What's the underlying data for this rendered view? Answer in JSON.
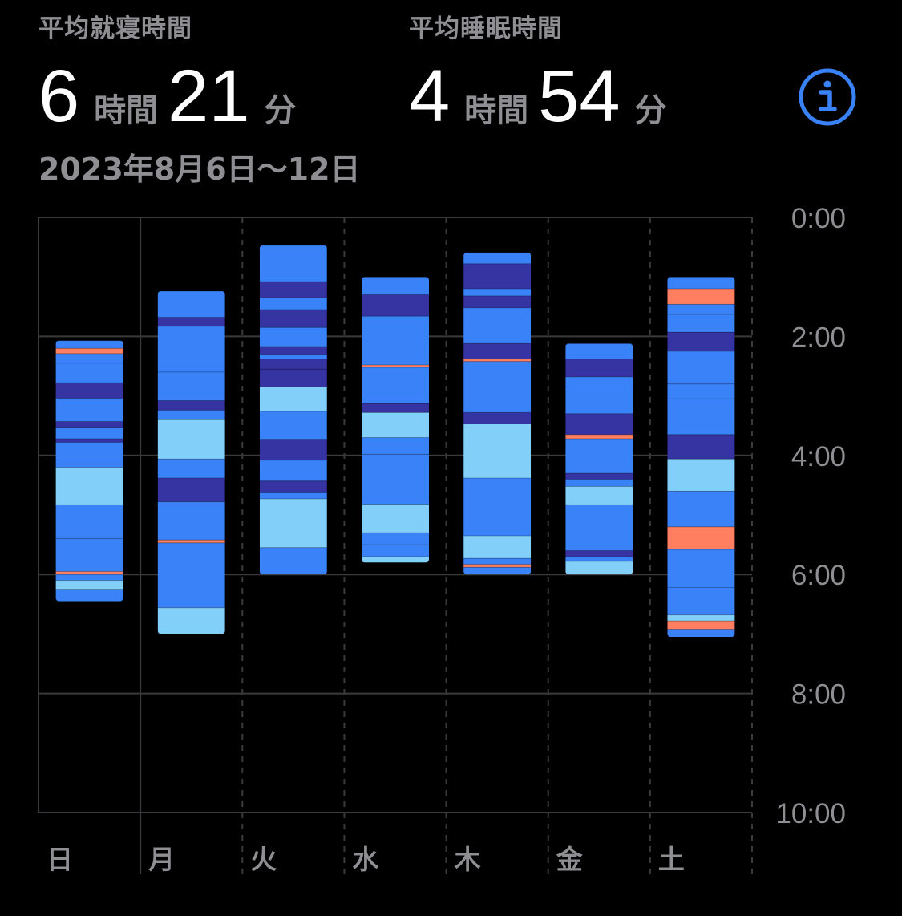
{
  "header": {
    "bedtime_label": "平均就寝時間",
    "bedtime_hours": "6",
    "bedtime_hours_unit": "時間",
    "bedtime_minutes": "21",
    "bedtime_minutes_unit": "分",
    "sleep_label": "平均睡眠時間",
    "sleep_hours": "4",
    "sleep_hours_unit": "時間",
    "sleep_minutes": "54",
    "sleep_minutes_unit": "分",
    "date_range": "2023年8月6日〜12日",
    "info_icon": "info-icon"
  },
  "colors": {
    "deep": "#3634a3",
    "core": "#3a82f7",
    "rem": "#82cffa",
    "awake": "#ff7f60",
    "grid": "#3a3a3c",
    "axis_text": "#8e8e93",
    "info": "#3a82f7"
  },
  "chart_data": {
    "type": "bar",
    "orientation": "vertical-floating",
    "ylim": [
      0,
      10
    ],
    "y_ticks": [
      "0:00",
      "2:00",
      "4:00",
      "6:00",
      "8:00",
      "10:00"
    ],
    "categories": [
      "日",
      "月",
      "火",
      "水",
      "木",
      "金",
      "土"
    ],
    "days": [
      {
        "day": "日",
        "start": 2.07,
        "end": 6.45,
        "segments": [
          {
            "stage": "core",
            "start": 2.07,
            "end": 2.2
          },
          {
            "stage": "awake",
            "start": 2.2,
            "end": 2.29
          },
          {
            "stage": "core",
            "start": 2.29,
            "end": 2.45
          },
          {
            "stage": "core",
            "start": 2.45,
            "end": 2.78
          },
          {
            "stage": "deep",
            "start": 2.78,
            "end": 3.04
          },
          {
            "stage": "core",
            "start": 3.04,
            "end": 3.43
          },
          {
            "stage": "deep",
            "start": 3.43,
            "end": 3.53
          },
          {
            "stage": "core",
            "start": 3.53,
            "end": 3.72
          },
          {
            "stage": "deep",
            "start": 3.72,
            "end": 3.78
          },
          {
            "stage": "core",
            "start": 3.78,
            "end": 4.2
          },
          {
            "stage": "rem",
            "start": 4.2,
            "end": 4.83
          },
          {
            "stage": "core",
            "start": 4.83,
            "end": 5.4
          },
          {
            "stage": "core",
            "start": 5.4,
            "end": 5.95
          },
          {
            "stage": "awake",
            "start": 5.95,
            "end": 6.0
          },
          {
            "stage": "core",
            "start": 6.0,
            "end": 6.1
          },
          {
            "stage": "rem",
            "start": 6.1,
            "end": 6.25
          },
          {
            "stage": "core",
            "start": 6.25,
            "end": 6.45
          }
        ]
      },
      {
        "day": "月",
        "start": 1.24,
        "end": 7.0,
        "segments": [
          {
            "stage": "core",
            "start": 1.24,
            "end": 1.68
          },
          {
            "stage": "deep",
            "start": 1.68,
            "end": 1.83
          },
          {
            "stage": "core",
            "start": 1.83,
            "end": 2.6
          },
          {
            "stage": "core",
            "start": 2.6,
            "end": 3.08
          },
          {
            "stage": "deep",
            "start": 3.08,
            "end": 3.24
          },
          {
            "stage": "core",
            "start": 3.24,
            "end": 3.4
          },
          {
            "stage": "rem",
            "start": 3.4,
            "end": 4.06
          },
          {
            "stage": "core",
            "start": 4.06,
            "end": 4.38
          },
          {
            "stage": "deep",
            "start": 4.38,
            "end": 4.78
          },
          {
            "stage": "core",
            "start": 4.78,
            "end": 5.42
          },
          {
            "stage": "awake",
            "start": 5.42,
            "end": 5.47
          },
          {
            "stage": "core",
            "start": 5.47,
            "end": 6.56
          },
          {
            "stage": "rem",
            "start": 6.56,
            "end": 7.0
          }
        ]
      },
      {
        "day": "火",
        "start": 0.47,
        "end": 6.0,
        "segments": [
          {
            "stage": "core",
            "start": 0.47,
            "end": 1.08
          },
          {
            "stage": "deep",
            "start": 1.08,
            "end": 1.35
          },
          {
            "stage": "core",
            "start": 1.35,
            "end": 1.55
          },
          {
            "stage": "deep",
            "start": 1.55,
            "end": 1.85
          },
          {
            "stage": "core",
            "start": 1.85,
            "end": 2.17
          },
          {
            "stage": "deep",
            "start": 2.17,
            "end": 2.3
          },
          {
            "stage": "core",
            "start": 2.3,
            "end": 2.38
          },
          {
            "stage": "deep",
            "start": 2.38,
            "end": 2.55
          },
          {
            "stage": "deep",
            "start": 2.55,
            "end": 2.85
          },
          {
            "stage": "rem",
            "start": 2.85,
            "end": 3.26
          },
          {
            "stage": "core",
            "start": 3.26,
            "end": 3.73
          },
          {
            "stage": "deep",
            "start": 3.73,
            "end": 4.08
          },
          {
            "stage": "core",
            "start": 4.08,
            "end": 4.43
          },
          {
            "stage": "deep",
            "start": 4.43,
            "end": 4.63
          },
          {
            "stage": "core",
            "start": 4.63,
            "end": 4.73
          },
          {
            "stage": "rem",
            "start": 4.73,
            "end": 5.55
          },
          {
            "stage": "core",
            "start": 5.55,
            "end": 6.0
          }
        ]
      },
      {
        "day": "水",
        "start": 1.0,
        "end": 5.8,
        "segments": [
          {
            "stage": "core",
            "start": 1.0,
            "end": 1.3
          },
          {
            "stage": "deep",
            "start": 1.3,
            "end": 1.66
          },
          {
            "stage": "core",
            "start": 1.66,
            "end": 2.48
          },
          {
            "stage": "awake",
            "start": 2.48,
            "end": 2.52
          },
          {
            "stage": "core",
            "start": 2.52,
            "end": 3.13
          },
          {
            "stage": "deep",
            "start": 3.13,
            "end": 3.28
          },
          {
            "stage": "rem",
            "start": 3.28,
            "end": 3.7
          },
          {
            "stage": "core",
            "start": 3.7,
            "end": 3.98
          },
          {
            "stage": "core",
            "start": 3.98,
            "end": 4.82
          },
          {
            "stage": "rem",
            "start": 4.82,
            "end": 5.3
          },
          {
            "stage": "core",
            "start": 5.3,
            "end": 5.5
          },
          {
            "stage": "core",
            "start": 5.5,
            "end": 5.7
          },
          {
            "stage": "rem",
            "start": 5.7,
            "end": 5.8
          }
        ]
      },
      {
        "day": "木",
        "start": 0.59,
        "end": 6.0,
        "segments": [
          {
            "stage": "core",
            "start": 0.59,
            "end": 0.78
          },
          {
            "stage": "deep",
            "start": 0.78,
            "end": 1.2
          },
          {
            "stage": "core",
            "start": 1.2,
            "end": 1.32
          },
          {
            "stage": "deep",
            "start": 1.32,
            "end": 1.52
          },
          {
            "stage": "core",
            "start": 1.52,
            "end": 2.12
          },
          {
            "stage": "deep",
            "start": 2.12,
            "end": 2.38
          },
          {
            "stage": "awake",
            "start": 2.38,
            "end": 2.42
          },
          {
            "stage": "core",
            "start": 2.42,
            "end": 3.28
          },
          {
            "stage": "deep",
            "start": 3.28,
            "end": 3.47
          },
          {
            "stage": "rem",
            "start": 3.47,
            "end": 4.38
          },
          {
            "stage": "core",
            "start": 4.38,
            "end": 5.35
          },
          {
            "stage": "rem",
            "start": 5.35,
            "end": 5.73
          },
          {
            "stage": "core",
            "start": 5.73,
            "end": 5.83
          },
          {
            "stage": "awake",
            "start": 5.83,
            "end": 5.88
          },
          {
            "stage": "core",
            "start": 5.88,
            "end": 6.0
          }
        ]
      },
      {
        "day": "金",
        "start": 2.12,
        "end": 6.0,
        "segments": [
          {
            "stage": "core",
            "start": 2.12,
            "end": 2.38
          },
          {
            "stage": "deep",
            "start": 2.38,
            "end": 2.68
          },
          {
            "stage": "core",
            "start": 2.68,
            "end": 2.85
          },
          {
            "stage": "core",
            "start": 2.85,
            "end": 3.3
          },
          {
            "stage": "deep",
            "start": 3.3,
            "end": 3.65
          },
          {
            "stage": "awake",
            "start": 3.65,
            "end": 3.72
          },
          {
            "stage": "core",
            "start": 3.72,
            "end": 4.3
          },
          {
            "stage": "deep",
            "start": 4.3,
            "end": 4.4
          },
          {
            "stage": "core",
            "start": 4.4,
            "end": 4.52
          },
          {
            "stage": "rem",
            "start": 4.52,
            "end": 4.83
          },
          {
            "stage": "core",
            "start": 4.83,
            "end": 5.6
          },
          {
            "stage": "deep",
            "start": 5.6,
            "end": 5.7
          },
          {
            "stage": "core",
            "start": 5.7,
            "end": 5.78
          },
          {
            "stage": "rem",
            "start": 5.78,
            "end": 6.0
          }
        ]
      },
      {
        "day": "土",
        "start": 1.0,
        "end": 7.05,
        "segments": [
          {
            "stage": "core",
            "start": 1.0,
            "end": 1.2
          },
          {
            "stage": "awake",
            "start": 1.2,
            "end": 1.46
          },
          {
            "stage": "core",
            "start": 1.46,
            "end": 1.63
          },
          {
            "stage": "core",
            "start": 1.63,
            "end": 1.93
          },
          {
            "stage": "deep",
            "start": 1.93,
            "end": 2.25
          },
          {
            "stage": "core",
            "start": 2.25,
            "end": 2.8
          },
          {
            "stage": "core",
            "start": 2.8,
            "end": 3.05
          },
          {
            "stage": "core",
            "start": 3.05,
            "end": 3.65
          },
          {
            "stage": "deep",
            "start": 3.65,
            "end": 4.06
          },
          {
            "stage": "rem",
            "start": 4.06,
            "end": 4.6
          },
          {
            "stage": "core",
            "start": 4.6,
            "end": 5.2
          },
          {
            "stage": "awake",
            "start": 5.2,
            "end": 5.58
          },
          {
            "stage": "core",
            "start": 5.58,
            "end": 6.22
          },
          {
            "stage": "core",
            "start": 6.22,
            "end": 6.68
          },
          {
            "stage": "rem",
            "start": 6.68,
            "end": 6.78
          },
          {
            "stage": "awake",
            "start": 6.78,
            "end": 6.92
          },
          {
            "stage": "core",
            "start": 6.92,
            "end": 7.05
          }
        ]
      }
    ]
  }
}
